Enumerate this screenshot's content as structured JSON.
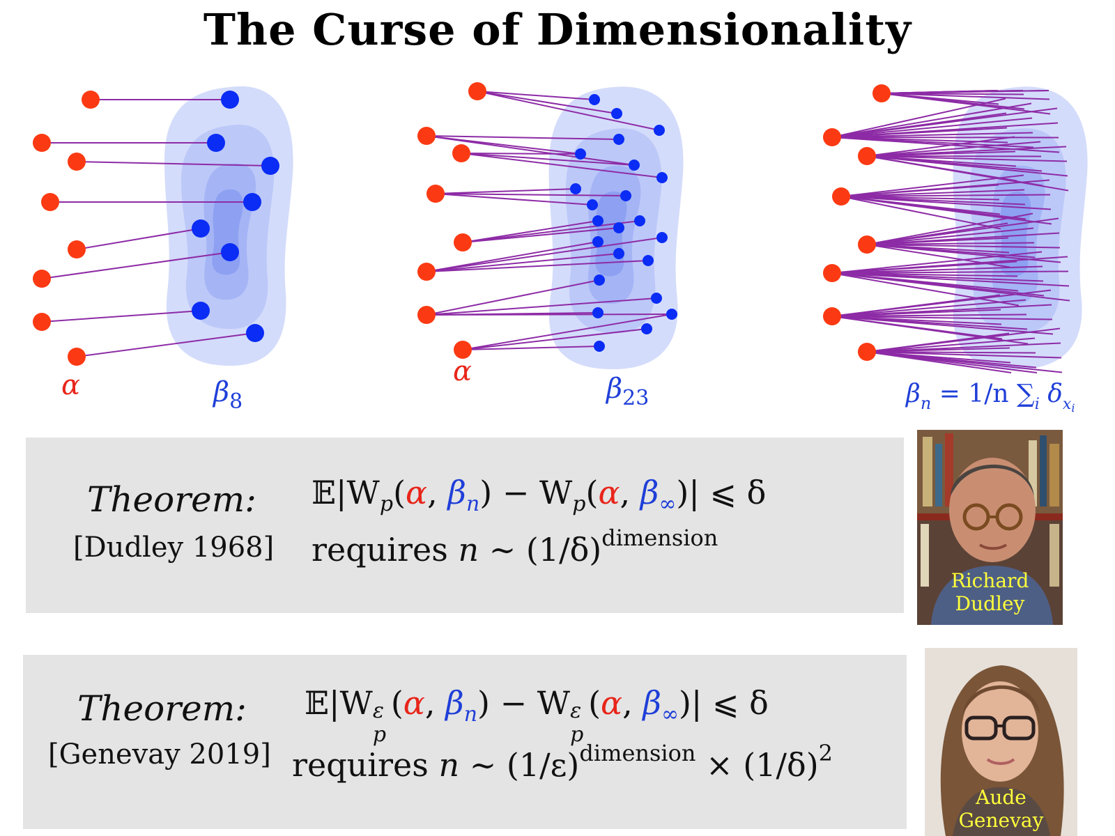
{
  "title": "The Curse of Dimensionality",
  "colors": {
    "red": "#fb3a13",
    "blue": "#0a2cf5",
    "line": "#8d2ba6",
    "blob": "#5a78ee"
  },
  "panels": [
    {
      "alpha_label": "α",
      "beta_label": "β",
      "beta_sub": "8"
    },
    {
      "alpha_label": "α",
      "beta_label": "β",
      "beta_sub": "23"
    },
    {
      "beta_label": "β",
      "beta_sub": "n",
      "formula_rest": "= 1/n ∑",
      "delta": "δ",
      "delta_sub": "x",
      "sum_sub": "i"
    }
  ],
  "theorem1": {
    "label": "Theorem:",
    "citation": "[Dudley 1968]",
    "line1": {
      "E": "𝔼|W",
      "p": "p",
      "open": "(",
      "alpha": "α",
      "comma": ",",
      "beta": "β",
      "n": "n",
      "close_minus": ") − W",
      "p2": "p",
      "open2": "(",
      "alpha2": "α",
      "comma2": ",",
      "beta2": "β",
      "inf": "∞",
      "end": ")| ⩽ δ"
    },
    "line2": {
      "requires": "requires",
      "n": "n",
      "tilde": "∼ (1/δ)",
      "exp": "dimension"
    }
  },
  "theorem2": {
    "label": "Theorem:",
    "citation": "[Genevay 2019]",
    "line1": {
      "E": "𝔼|W",
      "eps": "ε",
      "p": "p",
      "open": "(",
      "alpha": "α",
      "comma": ",",
      "beta": "β",
      "n": "n",
      "close_minus": ") − W",
      "eps2": "ε",
      "p2": "p",
      "open2": "(",
      "alpha2": "α",
      "comma2": ",",
      "beta2": "β",
      "inf": "∞",
      "end": ")| ⩽ δ"
    },
    "line2": {
      "requires": "requires",
      "n": "n",
      "tilde": "∼ (1/ε)",
      "exp": "dimension",
      "times": "× (1/δ)",
      "exp2": "2"
    }
  },
  "photos": [
    {
      "caption_line1": "Richard",
      "caption_line2": "Dudley"
    },
    {
      "caption_line1": "Aude",
      "caption_line2": "Genevay"
    }
  ]
}
